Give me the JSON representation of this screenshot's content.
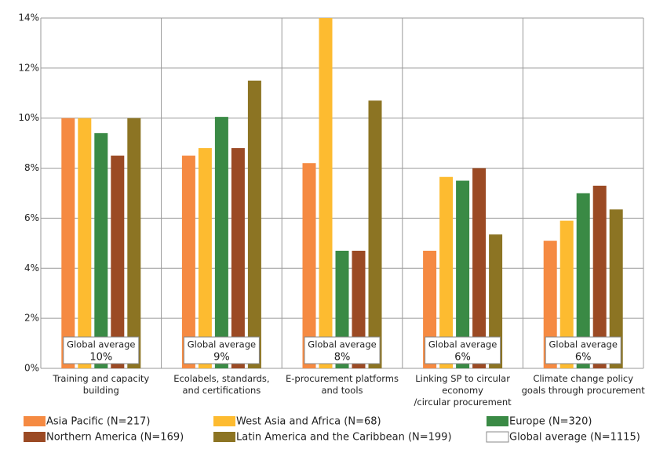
{
  "chart_data": {
    "type": "bar",
    "categories": [
      "Training and capacity\nbuilding",
      "Ecolabels, standards,\nand certifications",
      "E-procurement platforms\nand tools",
      "Linking SP to circular economy\n/circular procurement",
      "Climate change policy\ngoals through procurement"
    ],
    "series": [
      {
        "name": "Asia Pacific (N=217)",
        "color": "#f58a42",
        "values": [
          10,
          8.5,
          8.2,
          4.7,
          5.1
        ]
      },
      {
        "name": "West Asia and Africa (N=68)",
        "color": "#fdbb30",
        "values": [
          10,
          8.8,
          14,
          7.65,
          5.9
        ]
      },
      {
        "name": "Europe (N=320)",
        "color": "#3a8a45",
        "values": [
          9.4,
          10.05,
          4.7,
          7.5,
          7
        ]
      },
      {
        "name": "Northern America (N=169)",
        "color": "#9b4a24",
        "values": [
          8.5,
          8.8,
          4.7,
          8,
          7.3
        ]
      },
      {
        "name": "Latin America and the Caribbean (N=199)",
        "color": "#8c7423",
        "values": [
          10,
          11.5,
          10.7,
          5.35,
          6.35
        ]
      },
      {
        "name": "Global average (N=1115)",
        "color": "#ffffff",
        "values": [
          10,
          9,
          8,
          6,
          6
        ],
        "value_labels": [
          "10%",
          "9%",
          "8%",
          "6%",
          "6%"
        ]
      }
    ],
    "global_average_box_label": "Global average",
    "ylim": [
      0,
      14
    ],
    "yticks": [
      {
        "value": 0,
        "label": "0%"
      },
      {
        "value": 2,
        "label": "2%"
      },
      {
        "value": 4,
        "label": "4%"
      },
      {
        "value": 6,
        "label": "6%"
      },
      {
        "value": 8,
        "label": "8%"
      },
      {
        "value": 10,
        "label": "10%"
      },
      {
        "value": 12,
        "label": "12%"
      },
      {
        "value": 14,
        "label": "14%"
      }
    ],
    "grid": true
  }
}
